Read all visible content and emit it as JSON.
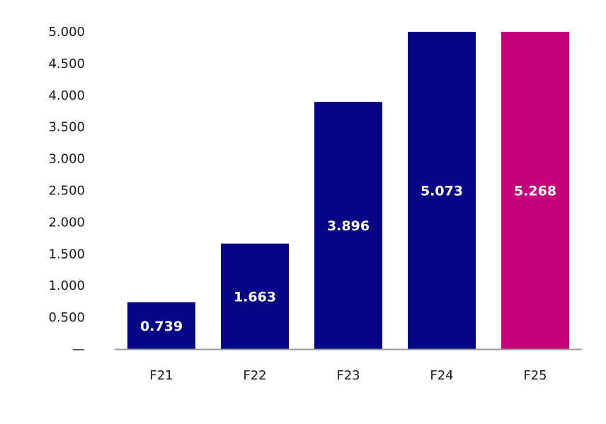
{
  "chart_data": {
    "type": "bar",
    "categories": [
      "F21",
      "F22",
      "F23",
      "F24",
      "F25"
    ],
    "values": [
      0.739,
      1.663,
      3.896,
      5.073,
      5.268
    ],
    "data_labels": [
      "0.739",
      "1.663",
      "3.896",
      "5.073",
      "5.268"
    ],
    "bar_colors": [
      "#050585",
      "#050585",
      "#050585",
      "#050585",
      "#c4007a"
    ],
    "y_ticks": [
      0,
      0.5,
      1.0,
      1.5,
      2.0,
      2.5,
      3.0,
      3.5,
      4.0,
      4.5,
      5.0
    ],
    "y_tick_labels": [
      "—",
      "0.500",
      "1.000",
      "1.500",
      "2.000",
      "2.500",
      "3.000",
      "3.500",
      "4.000",
      "4.500",
      "5.000"
    ],
    "ylim": [
      0,
      5.0
    ],
    "grid": false,
    "legend": "none",
    "axis_color": "#9a9a9a"
  }
}
